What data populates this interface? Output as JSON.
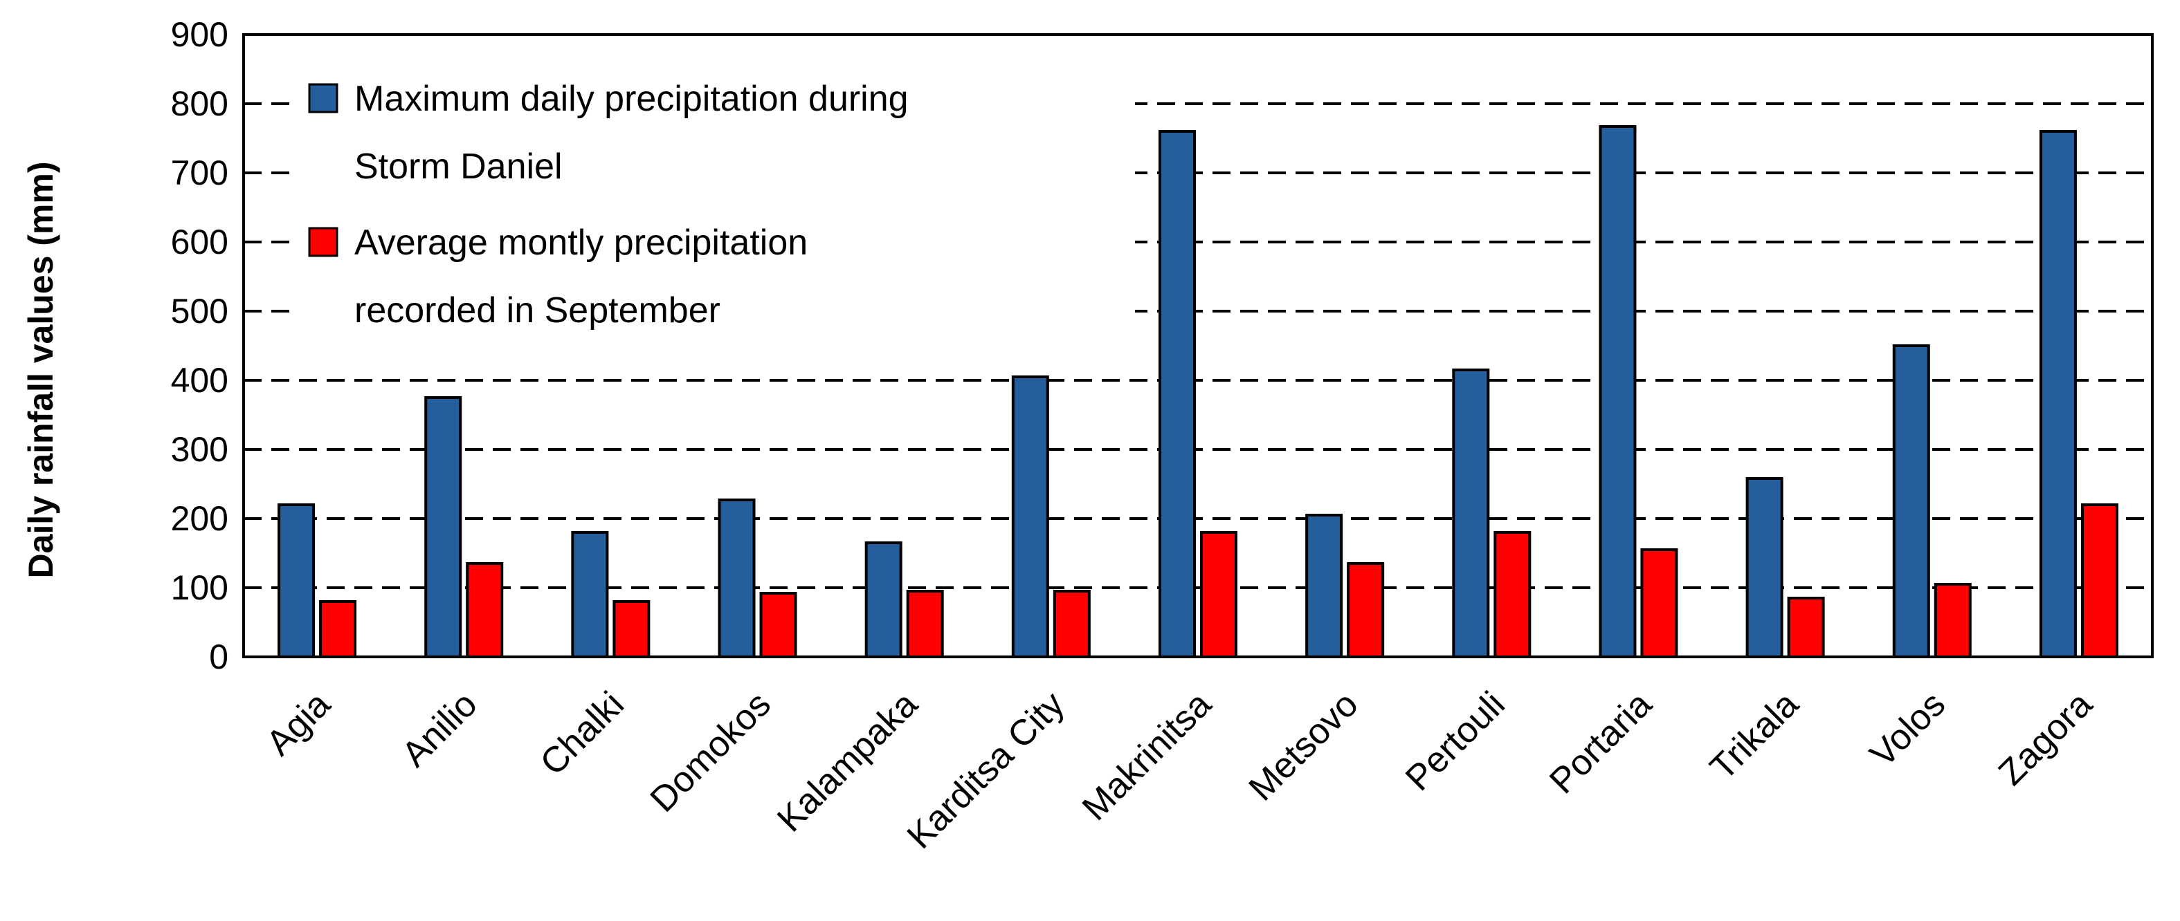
{
  "chart_data": {
    "type": "bar",
    "title": "",
    "xlabel": "",
    "ylabel": "Daily rainfall values (mm)",
    "ylim": [
      0,
      900
    ],
    "yticks": [
      0,
      100,
      200,
      300,
      400,
      500,
      600,
      700,
      800,
      900
    ],
    "grid": "horizontal dashed at 100-800",
    "legend_position": "top-left",
    "categories": [
      "Agia",
      "Anilio",
      "Chalki",
      "Domokos",
      "Kalampaka",
      "Karditsa City",
      "Makrinitsa",
      "Metsovo",
      "Pertouli",
      "Portaria",
      "Trikala",
      "Volos",
      "Zagora"
    ],
    "series": [
      {
        "name": "Maximum daily precipitation during Storm Daniel",
        "legend_lines": [
          "Maximum daily precipitation during",
          "Storm Daniel"
        ],
        "color": "#255E9C",
        "values": [
          220,
          375,
          180,
          227,
          165,
          405,
          760,
          205,
          415,
          767,
          258,
          450,
          760
        ]
      },
      {
        "name": "Average montly precipitation recorded in September",
        "legend_lines": [
          "Average montly precipitation",
          "recorded in September"
        ],
        "color": "#FF0000",
        "values": [
          80,
          135,
          80,
          92,
          95,
          95,
          180,
          135,
          180,
          155,
          85,
          105,
          220
        ]
      }
    ]
  }
}
